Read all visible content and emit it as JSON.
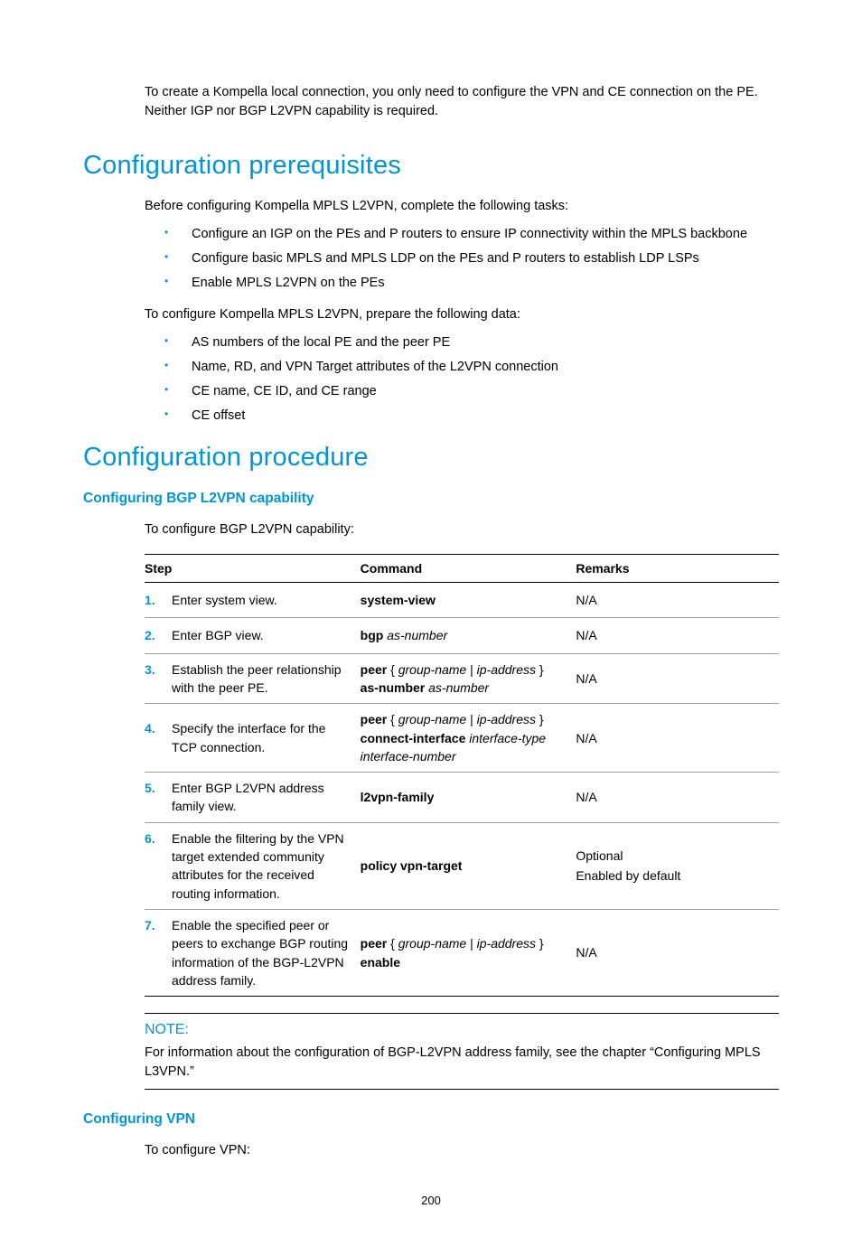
{
  "intro": "To create a Kompella local connection, you only need to configure the VPN and CE connection on the PE. Neither IGP nor BGP L2VPN capability is required.",
  "prerequisites": {
    "heading": "Configuration prerequisites",
    "lead1": "Before configuring Kompella MPLS L2VPN, complete the following tasks:",
    "tasks": [
      "Configure an IGP on the PEs and P routers to ensure IP connectivity within the MPLS backbone",
      "Configure basic MPLS and MPLS LDP on the PEs and P routers to establish LDP LSPs",
      "Enable MPLS L2VPN on the PEs"
    ],
    "lead2": "To configure Kompella MPLS L2VPN, prepare the following data:",
    "data": [
      "AS numbers of the local PE and the peer PE",
      "Name, RD, and VPN Target attributes of the L2VPN connection",
      "CE name, CE ID, and CE range",
      "CE offset"
    ]
  },
  "procedure": {
    "heading": "Configuration procedure",
    "bgp": {
      "heading": "Configuring BGP L2VPN capability",
      "lead": "To configure BGP L2VPN capability:",
      "table": {
        "headers": {
          "step": "Step",
          "command": "Command",
          "remarks": "Remarks"
        },
        "rows": [
          {
            "n": "1.",
            "desc": "Enter system view.",
            "cmd": [
              {
                "t": "system-view",
                "s": "b"
              }
            ],
            "remarks": [
              "N/A"
            ]
          },
          {
            "n": "2.",
            "desc": "Enter BGP view.",
            "cmd": [
              {
                "t": "bgp ",
                "s": "b"
              },
              {
                "t": "as-number",
                "s": "i"
              }
            ],
            "remarks": [
              "N/A"
            ]
          },
          {
            "n": "3.",
            "desc": "Establish the peer relationship with the peer PE.",
            "cmd": [
              {
                "t": "peer ",
                "s": "b"
              },
              {
                "t": "{ ",
                "s": ""
              },
              {
                "t": "group-name",
                "s": "i"
              },
              {
                "t": " | ",
                "s": ""
              },
              {
                "t": "ip-address",
                "s": "i"
              },
              {
                "t": " } ",
                "s": ""
              },
              {
                "t": "\n",
                "s": ""
              },
              {
                "t": "as-number ",
                "s": "b"
              },
              {
                "t": "as-number",
                "s": "i"
              }
            ],
            "remarks": [
              "N/A"
            ]
          },
          {
            "n": "4.",
            "desc": "Specify the interface for the TCP connection.",
            "cmd": [
              {
                "t": "peer ",
                "s": "b"
              },
              {
                "t": "{ ",
                "s": ""
              },
              {
                "t": "group-name",
                "s": "i"
              },
              {
                "t": " | ",
                "s": ""
              },
              {
                "t": "ip-address",
                "s": "i"
              },
              {
                "t": " } ",
                "s": ""
              },
              {
                "t": "\n",
                "s": ""
              },
              {
                "t": "connect-interface ",
                "s": "b"
              },
              {
                "t": "interface-type interface-number",
                "s": "i"
              }
            ],
            "remarks": [
              "N/A"
            ]
          },
          {
            "n": "5.",
            "desc": "Enter BGP L2VPN address family view.",
            "cmd": [
              {
                "t": "l2vpn-family",
                "s": "b"
              }
            ],
            "remarks": [
              "N/A"
            ]
          },
          {
            "n": "6.",
            "desc": "Enable the filtering by the VPN target extended community attributes for the received routing information.",
            "cmd": [
              {
                "t": "policy vpn-target",
                "s": "b"
              }
            ],
            "remarks": [
              "Optional",
              "Enabled by default"
            ]
          },
          {
            "n": "7.",
            "desc": "Enable the specified peer or peers to exchange BGP routing information of the BGP-L2VPN address family.",
            "cmd": [
              {
                "t": "peer ",
                "s": "b"
              },
              {
                "t": "{ ",
                "s": ""
              },
              {
                "t": "group-name",
                "s": "i"
              },
              {
                "t": " | ",
                "s": ""
              },
              {
                "t": "ip-address",
                "s": "i"
              },
              {
                "t": " } ",
                "s": ""
              },
              {
                "t": "\n",
                "s": ""
              },
              {
                "t": "enable",
                "s": "b"
              }
            ],
            "remarks": [
              "N/A"
            ]
          }
        ]
      }
    },
    "note": {
      "title": "NOTE:",
      "body": "For information about the configuration of BGP-L2VPN address family, see the chapter “Configuring MPLS L3VPN.”"
    },
    "vpn": {
      "heading": "Configuring VPN",
      "lead": "To configure VPN:"
    }
  },
  "page_number": "200"
}
